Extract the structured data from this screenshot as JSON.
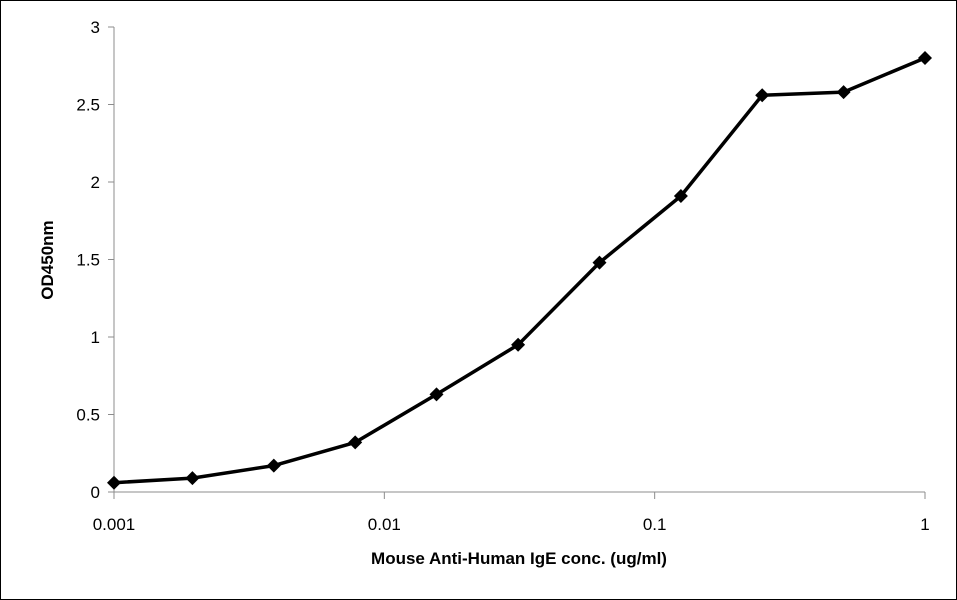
{
  "chart_data": {
    "type": "line",
    "title": "",
    "xlabel": "Mouse Anti-Human IgE  conc. (ug/ml)",
    "ylabel": "OD450nm",
    "x_scale": "log",
    "xlim": [
      0.001,
      1
    ],
    "ylim": [
      0,
      3
    ],
    "x_ticks": [
      "0.001",
      "0.01",
      "0.1",
      "1"
    ],
    "y_ticks": [
      "0",
      "0.5",
      "1",
      "1.5",
      "2",
      "2.5",
      "3"
    ],
    "grid": false,
    "legend": "none",
    "line_color": "#000000",
    "marker": "diamond",
    "series": [
      {
        "x": [
          0.001,
          0.00195,
          0.0039,
          0.0078,
          0.0156,
          0.03125,
          0.0625,
          0.125,
          0.25,
          0.5,
          1
        ],
        "values": [
          0.06,
          0.09,
          0.17,
          0.32,
          0.63,
          0.95,
          1.48,
          1.91,
          2.56,
          2.58,
          2.8
        ]
      }
    ]
  }
}
